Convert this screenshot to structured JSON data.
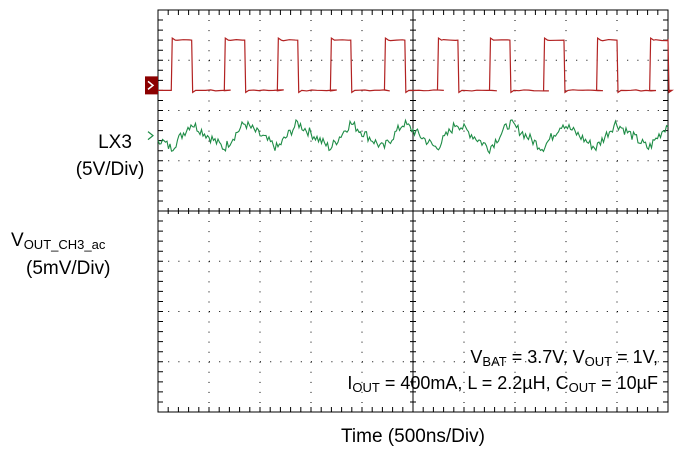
{
  "chart_data": {
    "type": "line",
    "title": "",
    "xlabel": "Time (500ns/Div)",
    "ylabel": "",
    "x_unit": "ns",
    "x_range": [
      0,
      5000
    ],
    "grid": true,
    "grid_divisions": {
      "x": 10,
      "y": 8
    },
    "colors": {
      "lx3": "#b22222",
      "vout": "#1e8c46",
      "marker": "#8b0000",
      "grid": "#000000"
    },
    "series": [
      {
        "name": "LX3",
        "scale": "(5V/Div)",
        "high_div": 0.9,
        "low_div": -0.1,
        "pulses": [
          {
            "start": 130,
            "end": 330
          },
          {
            "start": 650,
            "end": 850
          },
          {
            "start": 1170,
            "end": 1370
          },
          {
            "start": 1690,
            "end": 1890
          },
          {
            "start": 2220,
            "end": 2420
          },
          {
            "start": 2740,
            "end": 2940
          },
          {
            "start": 3250,
            "end": 3450
          },
          {
            "start": 3780,
            "end": 3980
          },
          {
            "start": 4300,
            "end": 4500
          },
          {
            "start": 4820,
            "end": 5000
          }
        ]
      },
      {
        "name": "VOUT_CH3_ac",
        "scale": "(5mV/Div)",
        "ripple_amplitude_div": 0.25,
        "noise_amplitude_div": 0.1
      }
    ],
    "annotations": {
      "line1": {
        "vbat_sub": "BAT",
        "vbat_val": " = 3.7V,  V",
        "vout_sub": "OUT",
        "vout_val": " = 1V,"
      },
      "line2": {
        "iout_sub": "OUT",
        "iout_val": " = 400mA, L = 2.2µH, C",
        "cout_sub": "OUT",
        "cout_val": " = 10µF"
      }
    },
    "labels": {
      "lx3_name": "LX3",
      "lx3_scale": "(5V/Div)",
      "vout_prefix": "V",
      "vout_sub": "OUT_CH3_ac",
      "vout_scale": "(5mV/Div)"
    }
  }
}
